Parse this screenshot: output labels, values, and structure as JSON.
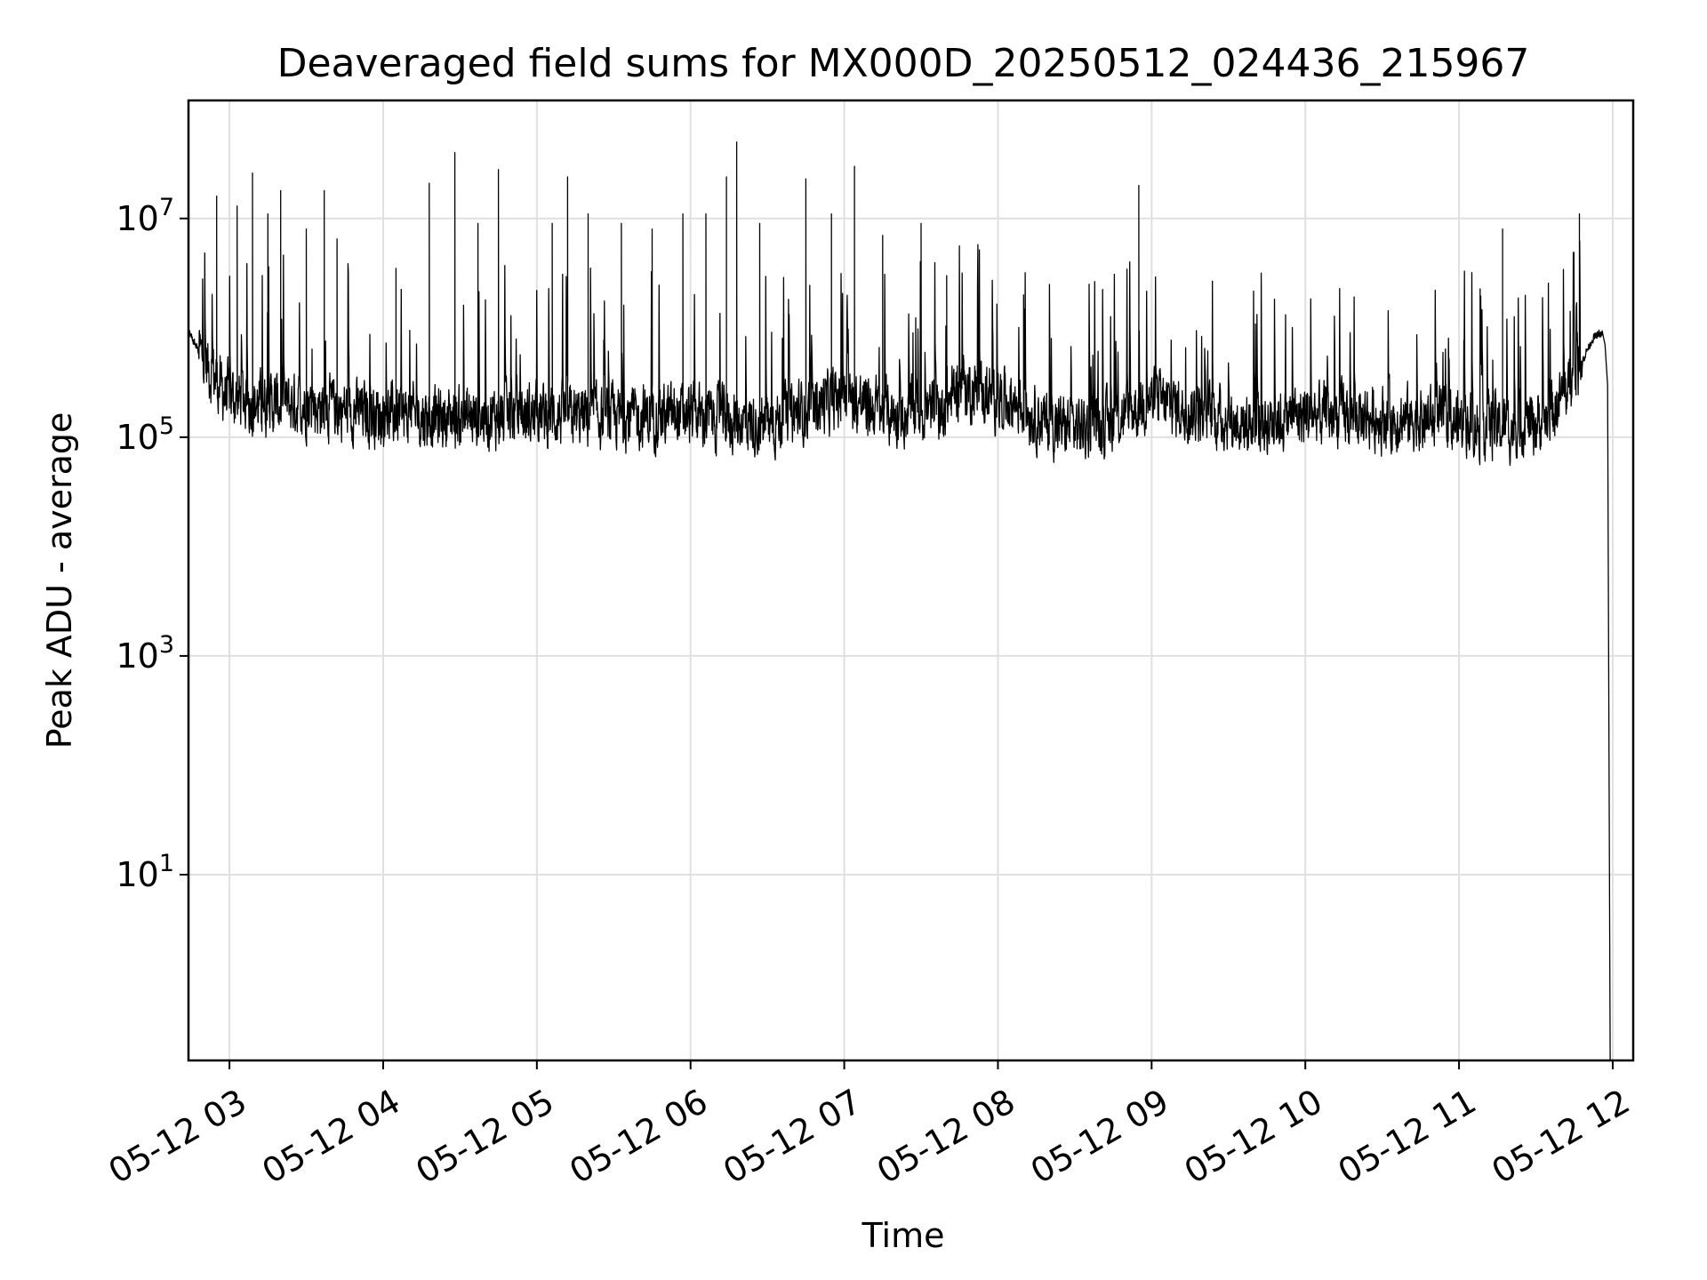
{
  "chart_data": {
    "type": "line",
    "title": "Deaveraged field sums for MX000D_20250512_024436_215967",
    "xlabel": "Time",
    "ylabel": "Peak ADU - average",
    "x_scale": "time",
    "y_scale": "log",
    "xlim": [
      "2025-05-12 02:44",
      "2025-05-12 12:08"
    ],
    "ylim": [
      0.2,
      120000000.0
    ],
    "grid": true,
    "legend": "none",
    "line_color": "#000000",
    "grid_color": "#e0e0e0",
    "x_ticks": [
      {
        "value": "2025-05-12 03:00",
        "label": "05-12 03"
      },
      {
        "value": "2025-05-12 04:00",
        "label": "05-12 04"
      },
      {
        "value": "2025-05-12 05:00",
        "label": "05-12 05"
      },
      {
        "value": "2025-05-12 06:00",
        "label": "05-12 06"
      },
      {
        "value": "2025-05-12 07:00",
        "label": "05-12 07"
      },
      {
        "value": "2025-05-12 08:00",
        "label": "05-12 08"
      },
      {
        "value": "2025-05-12 09:00",
        "label": "05-12 09"
      },
      {
        "value": "2025-05-12 10:00",
        "label": "05-12 10"
      },
      {
        "value": "2025-05-12 11:00",
        "label": "05-12 11"
      },
      {
        "value": "2025-05-12 12:00",
        "label": "05-12 12"
      }
    ],
    "y_ticks": [
      {
        "value": 10,
        "base": "10",
        "exp": "1"
      },
      {
        "value": 1000,
        "base": "10",
        "exp": "3"
      },
      {
        "value": 100000,
        "base": "10",
        "exp": "5"
      },
      {
        "value": 10000000,
        "base": "10",
        "exp": "7"
      }
    ],
    "baseline_profile": {
      "x": [
        "2025-05-12 02:44",
        "2025-05-12 02:50",
        "2025-05-12 02:58",
        "2025-05-12 03:10",
        "2025-05-12 03:30",
        "2025-05-12 04:00",
        "2025-05-12 04:30",
        "2025-05-12 05:00",
        "2025-05-12 05:30",
        "2025-05-12 06:00",
        "2025-05-12 06:30",
        "2025-05-12 06:50",
        "2025-05-12 07:00",
        "2025-05-12 07:20",
        "2025-05-12 07:38",
        "2025-05-12 07:45",
        "2025-05-12 07:55",
        "2025-05-12 08:05",
        "2025-05-12 08:20",
        "2025-05-12 08:40",
        "2025-05-12 09:00",
        "2025-05-12 09:20",
        "2025-05-12 09:40",
        "2025-05-12 10:00",
        "2025-05-12 10:30",
        "2025-05-12 11:00",
        "2025-05-12 11:20",
        "2025-05-12 11:35",
        "2025-05-12 11:45",
        "2025-05-12 11:52",
        "2025-05-12 11:56"
      ],
      "y": [
        900000,
        500000,
        250000,
        200000,
        200000,
        160000,
        150000,
        160000,
        150000,
        160000,
        130000,
        200000,
        230000,
        160000,
        180000,
        300000,
        240000,
        220000,
        130000,
        120000,
        220000,
        160000,
        130000,
        160000,
        150000,
        140000,
        120000,
        150000,
        350000,
        800000,
        900000
      ]
    },
    "spikes": {
      "x": [
        "2025-05-12 02:55",
        "2025-05-12 03:03",
        "2025-05-12 03:09",
        "2025-05-12 03:15",
        "2025-05-12 03:20",
        "2025-05-12 03:30",
        "2025-05-12 03:37",
        "2025-05-12 03:42",
        "2025-05-12 04:05",
        "2025-05-12 04:18",
        "2025-05-12 04:28",
        "2025-05-12 04:37",
        "2025-05-12 04:45",
        "2025-05-12 05:06",
        "2025-05-12 05:12",
        "2025-05-12 05:20",
        "2025-05-12 05:33",
        "2025-05-12 05:45",
        "2025-05-12 05:57",
        "2025-05-12 06:06",
        "2025-05-12 06:14",
        "2025-05-12 06:18",
        "2025-05-12 06:27",
        "2025-05-12 06:45",
        "2025-05-12 06:55",
        "2025-05-12 07:04",
        "2025-05-12 07:15",
        "2025-05-12 07:30",
        "2025-05-12 07:40",
        "2025-05-12 08:10",
        "2025-05-12 08:55",
        "2025-05-12 11:17",
        "2025-05-12 11:47"
      ],
      "y": [
        16000000,
        13000000,
        26000000,
        11000000,
        18000000,
        8000000,
        18000000,
        6500000,
        3500000,
        21000000,
        40000000,
        9000000,
        28000000,
        9000000,
        24000000,
        11000000,
        9000000,
        8000000,
        11000000,
        11000000,
        24000000,
        50000000,
        9000000,
        23000000,
        11000000,
        30000000,
        7000000,
        9000000,
        3000000,
        2000000,
        20000000,
        8000000,
        11000000
      ]
    },
    "final_drop": {
      "x": [
        "2025-05-12 11:57",
        "2025-05-12 11:58",
        "2025-05-12 11:59"
      ],
      "y": [
        700000,
        300000,
        0.2
      ]
    }
  }
}
